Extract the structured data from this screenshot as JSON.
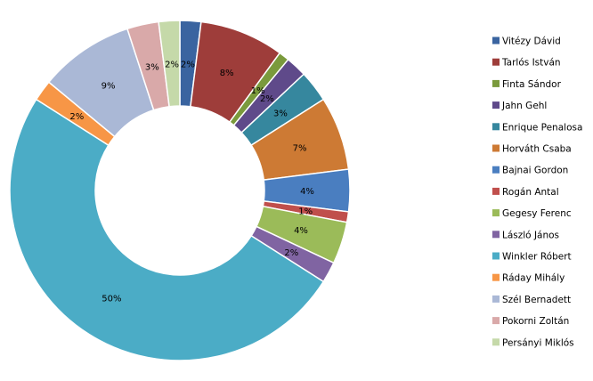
{
  "chart_data": {
    "type": "pie",
    "variant": "donut",
    "legend_placement": "right",
    "series": [
      {
        "name": "Vitézy Dávid",
        "value": 2,
        "label": "2%",
        "color": "#3a64a0"
      },
      {
        "name": "Tarlós István",
        "value": 8,
        "label": "8%",
        "color": "#9e3d3a"
      },
      {
        "name": "Finta Sándor",
        "value": 1,
        "label": "1%",
        "color": "#7a9a3c"
      },
      {
        "name": "Jahn Gehl",
        "value": 2,
        "label": "2%",
        "color": "#5f4a8a"
      },
      {
        "name": "Enrique Penalosa",
        "value": 3,
        "label": "3%",
        "color": "#36879e"
      },
      {
        "name": "Horváth Csaba",
        "value": 7,
        "label": "7%",
        "color": "#cd7a34"
      },
      {
        "name": "Bajnai Gordon",
        "value": 4,
        "label": "4%",
        "color": "#4a7ec0"
      },
      {
        "name": "Rogán Antal",
        "value": 1,
        "label": "1%",
        "color": "#c04f4c"
      },
      {
        "name": "Gegesy Ferenc",
        "value": 4,
        "label": "4%",
        "color": "#9bbb59"
      },
      {
        "name": "László János",
        "value": 2,
        "label": "2%",
        "color": "#8064a2"
      },
      {
        "name": "Winkler Róbert",
        "value": 50,
        "label": "50%",
        "color": "#4bacc6"
      },
      {
        "name": "Ráday Mihály",
        "value": 2,
        "label": "2%",
        "color": "#f79646"
      },
      {
        "name": "Szél Bernadett",
        "value": 9,
        "label": "9%",
        "color": "#aab8d6"
      },
      {
        "name": "Pokorni Zoltán",
        "value": 3,
        "label": "3%",
        "color": "#d9a9a9"
      },
      {
        "name": "Persányi Miklós",
        "value": 2,
        "label": "2%",
        "color": "#c5d9a9"
      }
    ]
  }
}
